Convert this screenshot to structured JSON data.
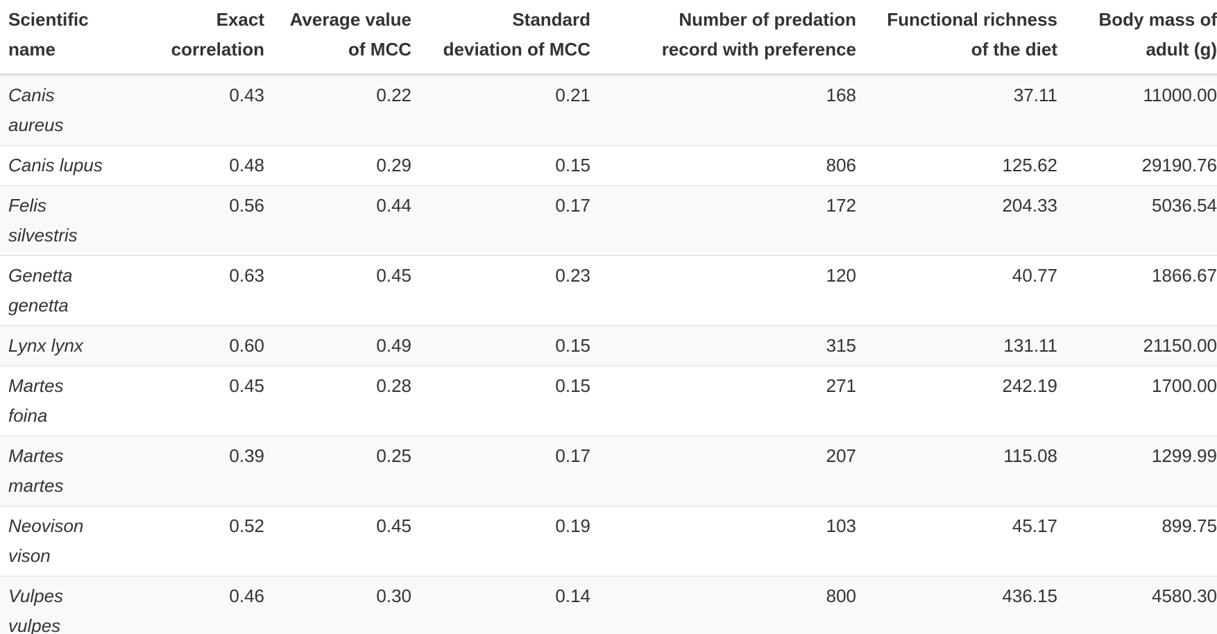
{
  "table": {
    "headers": [
      [
        "Scientific",
        "name"
      ],
      [
        "Exact",
        "correlation"
      ],
      [
        "Average value",
        "of MCC"
      ],
      [
        "Standard",
        "deviation of MCC"
      ],
      [
        "Number of predation",
        "record with preference"
      ],
      [
        "Functional richness",
        "of the diet"
      ],
      [
        "Body mass of",
        "adult (g)"
      ]
    ],
    "rows": [
      {
        "name": "Canis aureus",
        "exact": "0.43",
        "avg_mcc": "0.22",
        "sd_mcc": "0.21",
        "records": "168",
        "fric": "37.11",
        "mass": "11000.00"
      },
      {
        "name": "Canis lupus",
        "exact": "0.48",
        "avg_mcc": "0.29",
        "sd_mcc": "0.15",
        "records": "806",
        "fric": "125.62",
        "mass": "29190.76"
      },
      {
        "name": "Felis silvestris",
        "exact": "0.56",
        "avg_mcc": "0.44",
        "sd_mcc": "0.17",
        "records": "172",
        "fric": "204.33",
        "mass": "5036.54"
      },
      {
        "name": "Genetta genetta",
        "exact": "0.63",
        "avg_mcc": "0.45",
        "sd_mcc": "0.23",
        "records": "120",
        "fric": "40.77",
        "mass": "1866.67"
      },
      {
        "name": "Lynx lynx",
        "exact": "0.60",
        "avg_mcc": "0.49",
        "sd_mcc": "0.15",
        "records": "315",
        "fric": "131.11",
        "mass": "21150.00"
      },
      {
        "name": "Martes foina",
        "exact": "0.45",
        "avg_mcc": "0.28",
        "sd_mcc": "0.15",
        "records": "271",
        "fric": "242.19",
        "mass": "1700.00"
      },
      {
        "name": "Martes martes",
        "exact": "0.39",
        "avg_mcc": "0.25",
        "sd_mcc": "0.17",
        "records": "207",
        "fric": "115.08",
        "mass": "1299.99"
      },
      {
        "name": "Neovison vison",
        "exact": "0.52",
        "avg_mcc": "0.45",
        "sd_mcc": "0.19",
        "records": "103",
        "fric": "45.17",
        "mass": "899.75"
      },
      {
        "name": "Vulpes vulpes",
        "exact": "0.46",
        "avg_mcc": "0.30",
        "sd_mcc": "0.14",
        "records": "800",
        "fric": "436.15",
        "mass": "4580.30"
      }
    ]
  }
}
